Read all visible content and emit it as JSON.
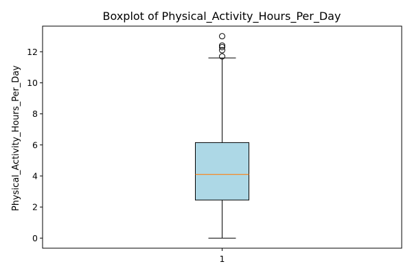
{
  "chart_data": {
    "type": "boxplot",
    "title": "Boxplot of Physical_Activity_Hours_Per_Day",
    "xlabel": "",
    "ylabel": "Physical_Activity_Hours_Per_Day",
    "categories": [
      "1"
    ],
    "ylim": [
      -0.65,
      13.65
    ],
    "yticks": [
      0,
      2,
      4,
      6,
      8,
      10,
      12
    ],
    "grid": false,
    "legend": "none",
    "boxes": [
      {
        "category": "1",
        "whisker_low": 0.0,
        "q1": 2.45,
        "median": 4.1,
        "q3": 6.15,
        "whisker_high": 11.6,
        "outliers": [
          11.7,
          12.1,
          12.3,
          12.4,
          13.0
        ]
      }
    ],
    "colors": {
      "box_fill": "#add8e6",
      "median_line": "#ff7f0e",
      "lines": "#000000"
    }
  }
}
